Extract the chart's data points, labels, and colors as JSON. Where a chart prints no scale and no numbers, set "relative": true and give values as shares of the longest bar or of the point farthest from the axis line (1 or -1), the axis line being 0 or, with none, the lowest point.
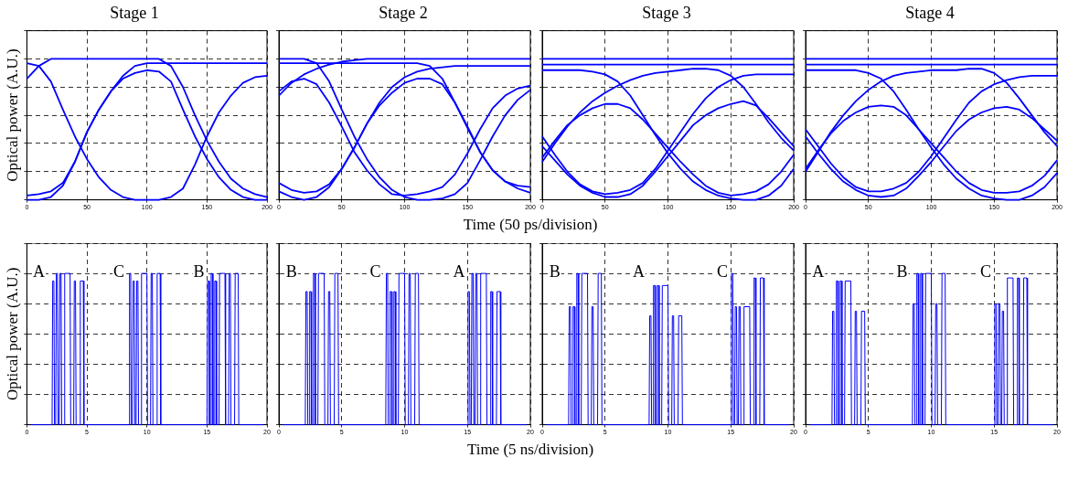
{
  "chart_data": [
    {
      "type": "line",
      "title": "Stage 1",
      "ylabel": "Optical power (A.U.)",
      "relative": true,
      "grid": true,
      "xlim": [
        0,
        200
      ],
      "xticks": [
        0,
        50,
        100,
        150,
        200
      ],
      "x": [
        0,
        10,
        20,
        30,
        40,
        50,
        60,
        70,
        80,
        90,
        100,
        110,
        120,
        130,
        140,
        150,
        160,
        170,
        180,
        190,
        200
      ],
      "series": [
        {
          "color": "#0000ff",
          "values": [
            0.97,
            0.95,
            0.84,
            0.64,
            0.45,
            0.29,
            0.16,
            0.07,
            0.02,
            0,
            0,
            0,
            0.02,
            0.08,
            0.25,
            0.45,
            0.62,
            0.74,
            0.83,
            0.87,
            0.88
          ]
        },
        {
          "color": "#0000ff",
          "values": [
            0,
            0,
            0.02,
            0.1,
            0.27,
            0.48,
            0.64,
            0.77,
            0.86,
            0.9,
            0.92,
            0.91,
            0.84,
            0.64,
            0.45,
            0.29,
            0.16,
            0.07,
            0.02,
            0,
            0
          ]
        },
        {
          "color": "#0000ff",
          "values": [
            0.86,
            0.95,
            1,
            1,
            1,
            1,
            1,
            1,
            1,
            1,
            1,
            1,
            0.95,
            0.8,
            0.6,
            0.42,
            0.27,
            0.15,
            0.08,
            0.04,
            0.02
          ]
        },
        {
          "color": "#0000ff",
          "values": [
            0.03,
            0.04,
            0.06,
            0.12,
            0.27,
            0.48,
            0.64,
            0.77,
            0.88,
            0.95,
            0.97,
            0.97,
            0.97,
            0.97,
            0.97,
            0.97,
            0.97,
            0.97,
            0.97,
            0.97,
            0.97
          ]
        }
      ]
    },
    {
      "type": "line",
      "title": "Stage 2",
      "xlabel": "Time (50 ps/division)",
      "relative": true,
      "grid": true,
      "xlim": [
        0,
        200
      ],
      "xticks": [
        0,
        50,
        100,
        150,
        200
      ],
      "x": [
        0,
        10,
        20,
        30,
        40,
        50,
        60,
        70,
        80,
        90,
        100,
        110,
        120,
        130,
        140,
        150,
        160,
        170,
        180,
        190,
        200
      ],
      "series": [
        {
          "color": "#0000ff",
          "values": [
            1,
            1,
            1,
            0.97,
            0.84,
            0.64,
            0.45,
            0.29,
            0.16,
            0.07,
            0.02,
            0,
            0,
            0.01,
            0.04,
            0.12,
            0.28,
            0.45,
            0.6,
            0.71,
            0.78
          ]
        },
        {
          "color": "#0000ff",
          "values": [
            0.77,
            0.84,
            0.86,
            0.82,
            0.69,
            0.52,
            0.34,
            0.21,
            0.11,
            0.04,
            0.03,
            0.04,
            0.06,
            0.09,
            0.18,
            0.33,
            0.5,
            0.65,
            0.74,
            0.79,
            0.81
          ]
        },
        {
          "color": "#0000ff",
          "values": [
            0.06,
            0.02,
            0,
            0.02,
            0.09,
            0.22,
            0.37,
            0.54,
            0.67,
            0.76,
            0.83,
            0.86,
            0.86,
            0.82,
            0.69,
            0.52,
            0.34,
            0.21,
            0.13,
            0.08,
            0.05
          ]
        },
        {
          "color": "#0000ff",
          "values": [
            0.97,
            0.97,
            0.97,
            0.97,
            0.97,
            0.97,
            0.97,
            0.97,
            0.97,
            0.97,
            0.97,
            0.97,
            0.95,
            0.86,
            0.69,
            0.51,
            0.34,
            0.21,
            0.13,
            0.1,
            0.09
          ]
        },
        {
          "color": "#0000ff",
          "values": [
            0.74,
            0.83,
            0.89,
            0.93,
            0.96,
            0.98,
            0.99,
            1,
            1,
            1,
            1,
            1,
            1,
            1,
            1,
            1,
            1,
            1,
            1,
            1,
            1
          ]
        },
        {
          "color": "#0000ff",
          "values": [
            0.12,
            0.07,
            0.05,
            0.06,
            0.11,
            0.22,
            0.37,
            0.54,
            0.69,
            0.8,
            0.87,
            0.91,
            0.93,
            0.94,
            0.95,
            0.95,
            0.95,
            0.95,
            0.95,
            0.95,
            0.95
          ]
        }
      ]
    },
    {
      "type": "line",
      "title": "Stage 3",
      "relative": true,
      "grid": true,
      "xlim": [
        0,
        200
      ],
      "xticks": [
        0,
        50,
        100,
        150,
        200
      ],
      "x": [
        0,
        10,
        20,
        30,
        40,
        50,
        60,
        70,
        80,
        90,
        100,
        110,
        120,
        130,
        140,
        150,
        160,
        170,
        180,
        190,
        200
      ],
      "series": [
        {
          "color": "#0000ff",
          "values": [
            1,
            1,
            1,
            1,
            1,
            1,
            1,
            1,
            1,
            1,
            1,
            1,
            1,
            1,
            1,
            1,
            1,
            1,
            1,
            1,
            1
          ]
        },
        {
          "color": "#0000ff",
          "values": [
            0.96,
            0.96,
            0.96,
            0.96,
            0.96,
            0.96,
            0.96,
            0.96,
            0.96,
            0.96,
            0.96,
            0.96,
            0.96,
            0.96,
            0.96,
            0.96,
            0.96,
            0.96,
            0.96,
            0.96,
            0.96
          ]
        },
        {
          "color": "#0000ff",
          "values": [
            0.3,
            0.42,
            0.53,
            0.6,
            0.65,
            0.68,
            0.68,
            0.65,
            0.57,
            0.47,
            0.37,
            0.27,
            0.18,
            0.1,
            0.05,
            0.03,
            0.04,
            0.06,
            0.11,
            0.2,
            0.32
          ]
        },
        {
          "color": "#0000ff",
          "values": [
            0.38,
            0.28,
            0.18,
            0.1,
            0.05,
            0.02,
            0.02,
            0.04,
            0.1,
            0.2,
            0.31,
            0.42,
            0.53,
            0.6,
            0.65,
            0.68,
            0.7,
            0.67,
            0.58,
            0.48,
            0.38
          ]
        },
        {
          "color": "#0000ff",
          "values": [
            0.92,
            0.92,
            0.92,
            0.92,
            0.91,
            0.89,
            0.84,
            0.74,
            0.6,
            0.46,
            0.33,
            0.22,
            0.13,
            0.07,
            0.03,
            0.01,
            0,
            0,
            0.03,
            0.1,
            0.22
          ]
        },
        {
          "color": "#0000ff",
          "values": [
            0.27,
            0.4,
            0.52,
            0.62,
            0.7,
            0.76,
            0.81,
            0.85,
            0.88,
            0.9,
            0.91,
            0.92,
            0.93,
            0.93,
            0.92,
            0.88,
            0.8,
            0.68,
            0.55,
            0.44,
            0.35
          ]
        },
        {
          "color": "#0000ff",
          "values": [
            0.45,
            0.32,
            0.2,
            0.11,
            0.06,
            0.04,
            0.05,
            0.07,
            0.12,
            0.22,
            0.35,
            0.48,
            0.61,
            0.72,
            0.8,
            0.85,
            0.88,
            0.89,
            0.89,
            0.89,
            0.89
          ]
        }
      ]
    },
    {
      "type": "line",
      "title": "Stage 4",
      "relative": true,
      "grid": true,
      "xlim": [
        0,
        200
      ],
      "xticks": [
        0,
        50,
        100,
        150,
        200
      ],
      "x": [
        0,
        10,
        20,
        30,
        40,
        50,
        60,
        70,
        80,
        90,
        100,
        110,
        120,
        130,
        140,
        150,
        160,
        170,
        180,
        190,
        200
      ],
      "series": [
        {
          "color": "#0000ff",
          "values": [
            1,
            1,
            1,
            1,
            1,
            1,
            1,
            1,
            1,
            1,
            1,
            1,
            1,
            1,
            1,
            1,
            1,
            1,
            1,
            1,
            1
          ]
        },
        {
          "color": "#0000ff",
          "values": [
            0.96,
            0.96,
            0.96,
            0.96,
            0.96,
            0.96,
            0.96,
            0.96,
            0.96,
            0.96,
            0.96,
            0.96,
            0.96,
            0.96,
            0.96,
            0.96,
            0.96,
            0.96,
            0.96,
            0.96,
            0.96
          ]
        },
        {
          "color": "#0000ff",
          "values": [
            0.22,
            0.35,
            0.47,
            0.56,
            0.62,
            0.66,
            0.67,
            0.66,
            0.6,
            0.5,
            0.4,
            0.3,
            0.2,
            0.12,
            0.07,
            0.05,
            0.05,
            0.06,
            0.1,
            0.17,
            0.28
          ]
        },
        {
          "color": "#0000ff",
          "values": [
            0.45,
            0.33,
            0.22,
            0.13,
            0.07,
            0.03,
            0.02,
            0.03,
            0.08,
            0.17,
            0.27,
            0.38,
            0.49,
            0.57,
            0.62,
            0.65,
            0.66,
            0.64,
            0.58,
            0.5,
            0.42
          ]
        },
        {
          "color": "#0000ff",
          "values": [
            0.92,
            0.92,
            0.92,
            0.92,
            0.92,
            0.9,
            0.86,
            0.77,
            0.64,
            0.5,
            0.37,
            0.25,
            0.15,
            0.08,
            0.03,
            0.01,
            0,
            0,
            0.03,
            0.09,
            0.19
          ]
        },
        {
          "color": "#0000ff",
          "values": [
            0.2,
            0.34,
            0.48,
            0.6,
            0.7,
            0.78,
            0.84,
            0.88,
            0.9,
            0.91,
            0.92,
            0.92,
            0.92,
            0.93,
            0.93,
            0.9,
            0.83,
            0.72,
            0.6,
            0.48,
            0.38
          ]
        },
        {
          "color": "#0000ff",
          "values": [
            0.5,
            0.38,
            0.26,
            0.16,
            0.09,
            0.06,
            0.06,
            0.08,
            0.12,
            0.2,
            0.31,
            0.44,
            0.57,
            0.69,
            0.77,
            0.82,
            0.85,
            0.87,
            0.88,
            0.88,
            0.88
          ]
        }
      ]
    },
    {
      "type": "line",
      "ylabel": "Optical power (A.U.)",
      "relative": true,
      "grid": true,
      "xlim": [
        0,
        20
      ],
      "xticks": [
        0,
        5,
        10,
        15,
        20
      ],
      "color": "#0000ff",
      "annotations": [
        "A",
        "C",
        "B"
      ],
      "x": [
        0.3,
        2.1,
        2.15,
        2.25,
        2.3,
        2.4,
        2.45,
        2.55,
        2.6,
        2.7,
        2.75,
        2.85,
        2.9,
        3.1,
        3.15,
        3.6,
        3.65,
        3.9,
        3.95,
        4.05,
        4.1,
        4.4,
        4.45,
        4.7,
        4.75,
        8.5,
        8.55,
        8.65,
        8.7,
        8.8,
        8.85,
        8.95,
        9,
        9.1,
        9.15,
        9.25,
        9.3,
        9.5,
        9.55,
        10,
        10.05,
        10.3,
        10.35,
        10.45,
        10.5,
        10.8,
        10.85,
        11.1,
        11.15,
        15,
        15.05,
        15.15,
        15.2,
        15.3,
        15.35,
        15.45,
        15.5,
        15.6,
        15.65,
        15.75,
        15.8,
        16,
        16.05,
        16.5,
        16.55,
        16.8,
        16.85,
        16.95,
        17,
        17.3,
        17.35,
        17.6,
        17.65,
        19.7
      ],
      "values": [
        0,
        0,
        0.95,
        0.95,
        0,
        0,
        1,
        1,
        0,
        0,
        1,
        1,
        0,
        0,
        1,
        1,
        0,
        0,
        0.95,
        0.95,
        0,
        0,
        0.95,
        0.95,
        0,
        0,
        1,
        1,
        0,
        0,
        0.95,
        0.95,
        0,
        0,
        0.95,
        0.95,
        0,
        0,
        1,
        1,
        0,
        0,
        1,
        1,
        0,
        0,
        1,
        1,
        0,
        0,
        0.95,
        0.95,
        0,
        0,
        1,
        1,
        0,
        0,
        0.95,
        0.95,
        0,
        0,
        1,
        1,
        0,
        0,
        1,
        1,
        0,
        0,
        1,
        1,
        0,
        0
      ]
    },
    {
      "type": "line",
      "xlabel": "Time (5 ns/division)",
      "relative": true,
      "grid": true,
      "xlim": [
        0,
        20
      ],
      "xticks": [
        0,
        5,
        10,
        15,
        20
      ],
      "color": "#0000ff",
      "annotations": [
        "B",
        "C",
        "A"
      ],
      "x": [
        0.3,
        2.1,
        2.15,
        2.25,
        2.3,
        2.4,
        2.45,
        2.55,
        2.6,
        2.7,
        2.75,
        2.85,
        2.9,
        3.1,
        3.15,
        3.6,
        3.65,
        3.9,
        3.95,
        4.05,
        4.1,
        4.4,
        4.45,
        4.7,
        4.75,
        8.5,
        8.55,
        8.65,
        8.7,
        8.8,
        8.85,
        8.95,
        9,
        9.1,
        9.15,
        9.25,
        9.3,
        9.5,
        9.55,
        10,
        10.05,
        10.3,
        10.35,
        10.45,
        10.5,
        10.8,
        10.85,
        11.1,
        11.15,
        15,
        15.05,
        15.15,
        15.2,
        15.3,
        15.35,
        15.45,
        15.5,
        15.6,
        15.65,
        15.75,
        15.8,
        16,
        16.05,
        16.5,
        16.55,
        16.8,
        16.85,
        16.95,
        17,
        17.3,
        17.35,
        17.6,
        17.65,
        19.7
      ],
      "values": [
        0,
        0,
        0.88,
        0.88,
        0,
        0,
        0.88,
        0.88,
        0,
        0,
        1,
        1,
        0,
        0,
        1,
        1,
        0,
        0,
        0.88,
        0.88,
        0,
        0,
        1,
        1,
        0,
        0,
        1,
        1,
        0,
        0,
        0.88,
        0.88,
        0,
        0,
        0.88,
        0.88,
        0,
        0,
        1,
        1,
        0,
        0,
        1,
        1,
        0,
        0,
        1,
        1,
        0,
        0,
        0.88,
        0.88,
        0,
        0,
        1,
        1,
        0,
        0,
        1,
        1,
        0,
        0,
        1,
        1,
        0,
        0,
        0.88,
        0.88,
        0,
        0,
        0.88,
        0.88,
        0,
        0
      ]
    },
    {
      "type": "line",
      "relative": true,
      "grid": true,
      "xlim": [
        0,
        20
      ],
      "xticks": [
        0,
        5,
        10,
        15,
        20
      ],
      "color": "#0000ff",
      "annotations": [
        "B",
        "A",
        "C"
      ],
      "x": [
        0.3,
        2.1,
        2.15,
        2.25,
        2.3,
        2.4,
        2.45,
        2.55,
        2.6,
        2.7,
        2.75,
        2.85,
        2.9,
        3.1,
        3.15,
        3.6,
        3.65,
        3.9,
        3.95,
        4.05,
        4.1,
        4.4,
        4.45,
        4.7,
        4.75,
        8.5,
        8.55,
        8.65,
        8.7,
        8.8,
        8.85,
        8.95,
        9,
        9.1,
        9.15,
        9.25,
        9.3,
        9.5,
        9.55,
        10,
        10.05,
        10.3,
        10.35,
        10.45,
        10.5,
        10.8,
        10.85,
        11.1,
        11.15,
        15,
        15.05,
        15.15,
        15.2,
        15.3,
        15.35,
        15.45,
        15.5,
        15.6,
        15.65,
        15.75,
        15.8,
        16,
        16.05,
        16.5,
        16.55,
        16.8,
        16.85,
        16.95,
        17,
        17.3,
        17.35,
        17.6,
        17.65,
        19.7
      ],
      "values": [
        0,
        0,
        0.78,
        0.78,
        0,
        0,
        0.78,
        0.78,
        0,
        0,
        1,
        1,
        0,
        0,
        1,
        1,
        0,
        0,
        0.78,
        0.78,
        0,
        0,
        1,
        1,
        0,
        0,
        0.72,
        0.72,
        0,
        0,
        0.92,
        0.92,
        0,
        0,
        0.92,
        0.92,
        0,
        0,
        0.92,
        0.92,
        0,
        0,
        0.72,
        0.72,
        0,
        0,
        0.72,
        0.72,
        0,
        0,
        1,
        1,
        0,
        0,
        0.78,
        0.78,
        0,
        0,
        0.78,
        0.78,
        0,
        0,
        0.78,
        0.78,
        0,
        0,
        0.97,
        0.97,
        0,
        0,
        0.97,
        0.97,
        0,
        0
      ]
    },
    {
      "type": "line",
      "relative": true,
      "grid": true,
      "xlim": [
        0,
        20
      ],
      "xticks": [
        0,
        5,
        10,
        15,
        20
      ],
      "color": "#0000ff",
      "annotations": [
        "A",
        "B",
        "C"
      ],
      "x": [
        0.3,
        2.1,
        2.15,
        2.25,
        2.3,
        2.4,
        2.45,
        2.55,
        2.6,
        2.7,
        2.75,
        2.85,
        2.9,
        3.1,
        3.15,
        3.6,
        3.65,
        3.9,
        3.95,
        4.05,
        4.1,
        4.4,
        4.45,
        4.7,
        4.75,
        8.5,
        8.55,
        8.65,
        8.7,
        8.8,
        8.85,
        8.95,
        9,
        9.1,
        9.15,
        9.25,
        9.3,
        9.5,
        9.55,
        10,
        10.05,
        10.3,
        10.35,
        10.45,
        10.5,
        10.8,
        10.85,
        11.1,
        11.15,
        15,
        15.05,
        15.15,
        15.2,
        15.3,
        15.35,
        15.45,
        15.5,
        15.6,
        15.65,
        15.75,
        15.8,
        16,
        16.05,
        16.5,
        16.55,
        16.8,
        16.85,
        16.95,
        17,
        17.3,
        17.35,
        17.6,
        17.65,
        19.7
      ],
      "values": [
        0,
        0,
        0.75,
        0.75,
        0,
        0,
        0.95,
        0.95,
        0,
        0,
        0.95,
        0.95,
        0,
        0,
        0.95,
        0.95,
        0,
        0,
        0.75,
        0.75,
        0,
        0,
        0.75,
        0.75,
        0,
        0,
        0.8,
        0.8,
        0,
        0,
        1,
        1,
        0,
        0,
        1,
        1,
        0,
        0,
        1,
        1,
        0,
        0,
        0.8,
        0.8,
        0,
        0,
        1,
        1,
        0,
        0,
        0.8,
        0.8,
        0,
        0,
        0.8,
        0.8,
        0,
        0,
        0.75,
        0.75,
        0,
        0,
        0.97,
        0.97,
        0,
        0,
        0.97,
        0.97,
        0,
        0,
        0.97,
        0.97,
        0,
        0
      ]
    }
  ]
}
